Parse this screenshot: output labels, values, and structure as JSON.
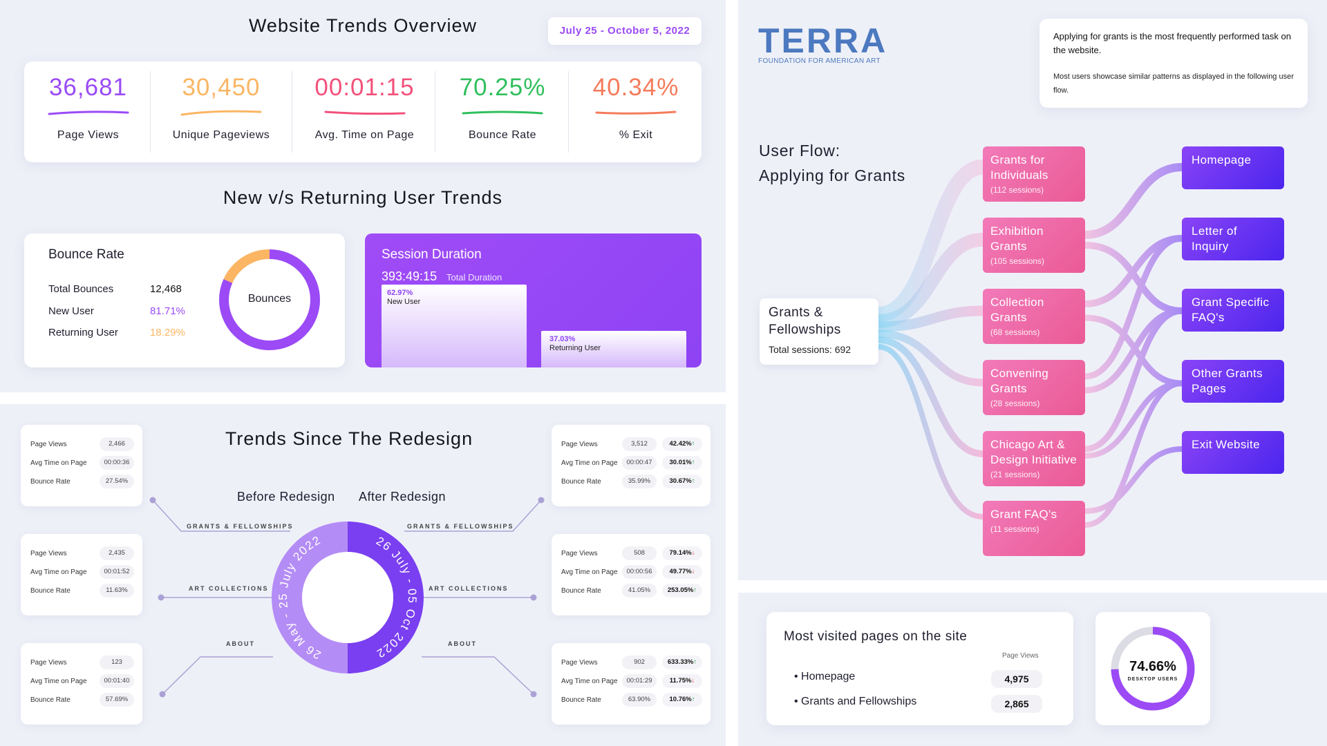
{
  "overview": {
    "title": "Website Trends Overview",
    "date_range": "July 25 - October 5, 2022",
    "kpis": [
      {
        "value": "36,681",
        "label": "Page Views",
        "color": "#9b4af6"
      },
      {
        "value": "30,450",
        "label": "Unique Pageviews",
        "color": "#fbb563"
      },
      {
        "value": "00:01:15",
        "label": "Avg. Time on Page",
        "color": "#f2507a"
      },
      {
        "value": "70.25%",
        "label": "Bounce Rate",
        "color": "#2fbf5c"
      },
      {
        "value": "40.34%",
        "label": "% Exit",
        "color": "#f47b5b"
      }
    ]
  },
  "new_vs_returning": {
    "title": "New v/s Returning User Trends",
    "bounce_card": {
      "title": "Bounce Rate",
      "rows": [
        {
          "label": "Total Bounces",
          "value": "12,468"
        },
        {
          "label": "New User",
          "value": "81.71%"
        },
        {
          "label": "Returning User",
          "value": "18.29%"
        }
      ],
      "donut_label": "Bounces",
      "new_share": 81.71,
      "returning_share": 18.29
    },
    "session_card": {
      "title": "Session Duration",
      "total_value": "393:49:15",
      "total_label": "Total Duration",
      "new_pct": "62.97%",
      "new_label": "New User",
      "returning_pct": "37.03%",
      "returning_label": "Returning User",
      "new_share": 62.97,
      "returning_share": 37.03
    }
  },
  "redesign": {
    "title": "Trends Since The Redesign",
    "before_label": "Before Redesign",
    "after_label": "After Redesign",
    "before_ring_text": "26 May - 25 July 2022",
    "after_ring_text": "26 July - 05 Oct 2022",
    "sections": [
      "GRANTS & FELLOWSHIPS",
      "ART COLLECTIONS",
      "ABOUT"
    ],
    "row_labels": [
      "Page Views",
      "Avg Time on Page",
      "Bounce Rate"
    ],
    "before": [
      [
        "2,466",
        "00:00:36",
        "27.54%"
      ],
      [
        "2,435",
        "00:01:52",
        "11.63%"
      ],
      [
        "123",
        "00:01:40",
        "57.69%"
      ]
    ],
    "after": [
      [
        [
          "3,512",
          "42.42%",
          "up"
        ],
        [
          "00:00:47",
          "30.01%",
          "up"
        ],
        [
          "35.99%",
          "30.67%",
          "up"
        ]
      ],
      [
        [
          "508",
          "79.14%",
          "down"
        ],
        [
          "00:00:56",
          "49.77%",
          "down"
        ],
        [
          "41.05%",
          "253.05%",
          "up"
        ]
      ],
      [
        [
          "902",
          "633.33%",
          "up"
        ],
        [
          "00:01:29",
          "11.75%",
          "down"
        ],
        [
          "63.90%",
          "10.76%",
          "up"
        ]
      ]
    ]
  },
  "terra": {
    "logo_main": "TERRA",
    "logo_sub": "FOUNDATION FOR AMERICAN ART",
    "note_line1": "Applying for grants is the most frequently performed task on the website.",
    "note_line2": "Most users showcase similar patterns as displayed in the following user flow.",
    "flow_title_1": "User Flow:",
    "flow_title_2": "Applying for Grants",
    "source": {
      "title": "Grants & Fellowships",
      "sub": "Total sessions: 692"
    },
    "middle": [
      {
        "title": "Grants for Individuals",
        "sub": "(112 sessions)"
      },
      {
        "title": "Exhibition Grants",
        "sub": "(105 sessions)"
      },
      {
        "title": "Collection Grants",
        "sub": "(68 sessions)"
      },
      {
        "title": "Convening Grants",
        "sub": "(28 sessions)"
      },
      {
        "title": "Chicago Art & Design Initiative",
        "sub": "(21 sessions)"
      },
      {
        "title": "Grant FAQ's",
        "sub": "(11 sessions)"
      }
    ],
    "destinations": [
      "Homepage",
      "Letter of Inquiry",
      "Grant Specific FAQ's",
      "Other Grants Pages",
      "Exit Website"
    ]
  },
  "most_visited": {
    "title": "Most visited pages on the site",
    "column_label": "Page Views",
    "rows": [
      {
        "page": "Homepage",
        "views": "4,975"
      },
      {
        "page": "Grants and Fellowships",
        "views": "2,865"
      }
    ]
  },
  "desktop": {
    "value": "74.66%",
    "label": "DESKTOP USERS",
    "share": 74.66
  }
}
